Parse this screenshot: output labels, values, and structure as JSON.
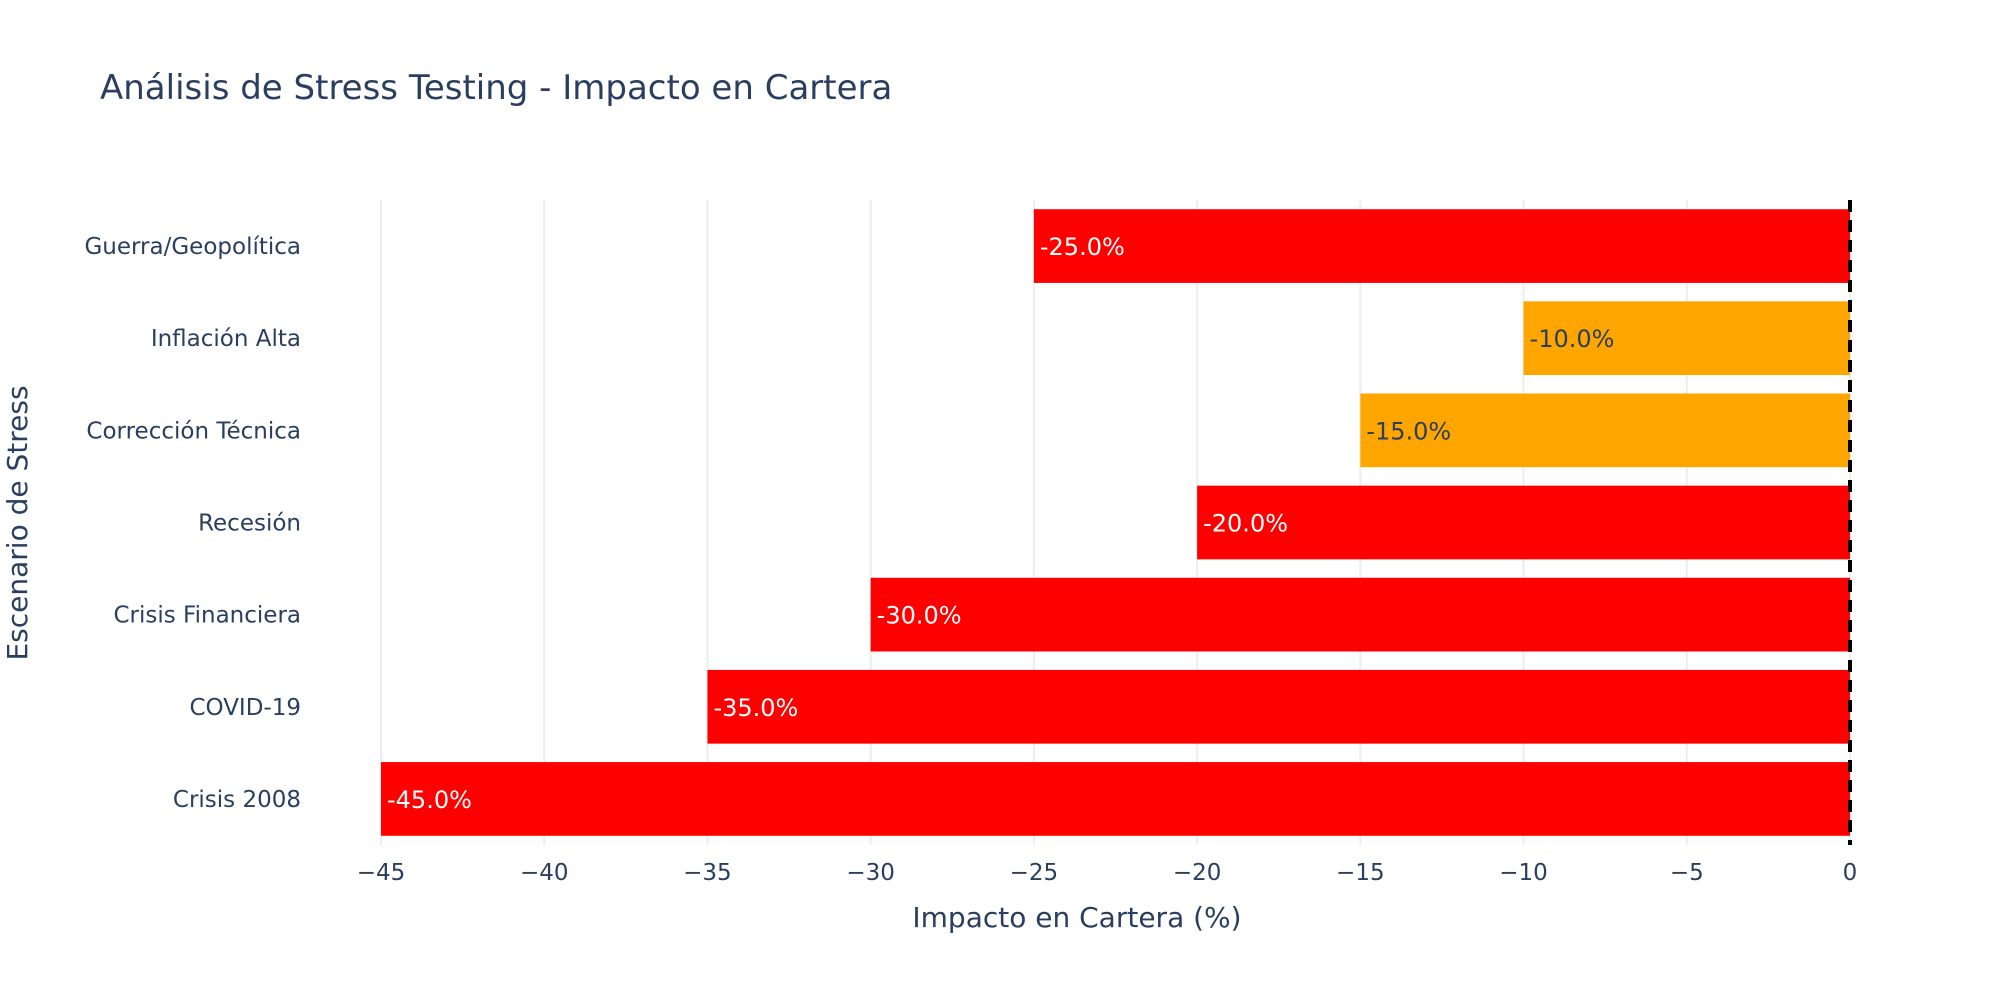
{
  "chart_data": {
    "type": "bar",
    "orientation": "horizontal",
    "title": "Análisis de Stress Testing - Impacto en Cartera",
    "xlabel": "Impacto en Cartera (%)",
    "ylabel": "Escenario de Stress",
    "categories": [
      "Crisis 2008",
      "COVID-19",
      "Crisis Financiera",
      "Recesión",
      "Corrección Técnica",
      "Inflación Alta",
      "Guerra/Geopolítica"
    ],
    "values": [
      -45,
      -35,
      -30,
      -20,
      -15,
      -10,
      -25
    ],
    "data_labels": [
      "-45.0%",
      "-35.0%",
      "-30.0%",
      "-20.0%",
      "-15.0%",
      "-10.0%",
      "-25.0%"
    ],
    "bar_colors": [
      "#ff0000",
      "#ff0000",
      "#ff0000",
      "#ff0000",
      "#ffa500",
      "#ffa500",
      "#ff0000"
    ],
    "label_colors": [
      "#ffffff",
      "#ffffff",
      "#ffffff",
      "#ffffff",
      "#2a3f5f",
      "#2a3f5f",
      "#ffffff"
    ],
    "xlim": [
      -45,
      0
    ],
    "xticks": [
      -45,
      -40,
      -35,
      -30,
      -25,
      -20,
      -15,
      -10,
      -5,
      0
    ],
    "xtick_labels": [
      "−45",
      "−40",
      "−35",
      "−30",
      "−25",
      "−20",
      "−15",
      "−10",
      "−5",
      "0"
    ],
    "reference_line": {
      "x": 0,
      "style": "dashed",
      "color": "#000000"
    },
    "grid": true
  }
}
